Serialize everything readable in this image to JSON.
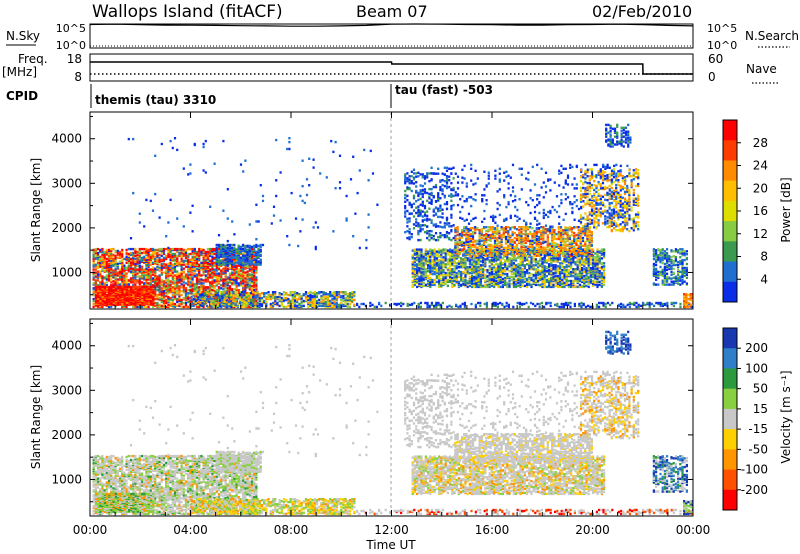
{
  "header": {
    "station": "Wallops Island (fitACF)",
    "beam": "Beam 07",
    "date": "02/Feb/2010"
  },
  "panels": {
    "nsky_label": "N.Sky",
    "nsky_ticks": [
      "10^5",
      "10^0"
    ],
    "nsearch_label": "N.Search",
    "nsearch_ticks": [
      "10^5",
      "10^0"
    ],
    "freq_label": "Freq.",
    "freq_unit": "[MHz]",
    "freq_ticks": [
      "18",
      "8"
    ],
    "nave_label": "Nave",
    "nave_ticks": [
      "60",
      "0"
    ],
    "cpid_label": "CPID",
    "cpid_1": "themis (tau) 3310",
    "cpid_2": "tau (fast) -503"
  },
  "xaxis": {
    "label": "Time UT",
    "ticks": [
      "00:00",
      "04:00",
      "08:00",
      "12:00",
      "16:00",
      "20:00",
      "00:00"
    ]
  },
  "power_panel": {
    "ylabel": "Slant Range [km]",
    "yticks": [
      "4000",
      "3000",
      "2000",
      "1000"
    ],
    "cbar_label": "Power [dB]",
    "cbar_ticks": [
      "28",
      "24",
      "20",
      "16",
      "12",
      "8",
      "4"
    ],
    "cbar_colors": [
      "#ff0000",
      "#ff3c00",
      "#ff8c00",
      "#ffbe00",
      "#dddd00",
      "#88cc44",
      "#3a9a50",
      "#1f6fd0",
      "#0a2ee8"
    ]
  },
  "velocity_panel": {
    "ylabel": "Slant Range [km]",
    "yticks": [
      "4000",
      "3000",
      "2000",
      "1000"
    ],
    "cbar_label": "Velocity [m s⁻¹]",
    "cbar_ticks": [
      "200",
      "100",
      "50",
      "15",
      "-15",
      "-50",
      "-100",
      "-200"
    ],
    "cbar_colors": [
      "#1838b0",
      "#2e7ec8",
      "#2a9a3c",
      "#88d040",
      "#c8c8c8",
      "#ffd000",
      "#ff9600",
      "#ff5000",
      "#ff0000"
    ]
  },
  "chart_data": [
    {
      "type": "line",
      "title": "N.Sky / N.Search",
      "x": [
        0,
        1,
        2,
        3,
        4,
        5,
        6,
        7,
        8,
        9,
        10,
        11,
        12,
        13,
        14,
        15,
        16,
        17,
        18,
        19,
        20,
        21,
        22,
        23,
        24
      ],
      "series": [
        {
          "name": "N.Sky",
          "values": [
            80000,
            90000,
            70000,
            60000,
            55000,
            50000,
            45000,
            40000,
            35000,
            35000,
            40000,
            50000,
            90000,
            100000,
            90000,
            80000,
            70000,
            60000,
            60000,
            70000,
            80000,
            90000,
            70000,
            50000,
            40000
          ]
        }
      ],
      "ylim": [
        "10^0",
        "10^5"
      ]
    },
    {
      "type": "line",
      "title": "Freq. / Nave",
      "x": [
        0,
        12,
        12.01,
        22,
        22.01,
        24
      ],
      "series": [
        {
          "name": "Freq. [MHz]",
          "values": [
            16,
            16,
            15,
            15,
            10,
            10
          ]
        },
        {
          "name": "Nave",
          "values": [
            6,
            6,
            6,
            6,
            6,
            6
          ]
        }
      ]
    },
    {
      "type": "heatmap",
      "title": "Power [dB]",
      "xlabel": "Time UT",
      "ylabel": "Slant Range [km]",
      "xlim": [
        "00:00",
        "00:00"
      ],
      "ylim": [
        180,
        4600
      ],
      "scale": [
        4,
        30
      ]
    },
    {
      "type": "heatmap",
      "title": "Velocity [m s⁻¹]",
      "xlabel": "Time UT",
      "ylabel": "Slant Range [km]",
      "xlim": [
        "00:00",
        "00:00"
      ],
      "ylim": [
        180,
        4600
      ],
      "scale": [
        -200,
        200
      ]
    }
  ]
}
